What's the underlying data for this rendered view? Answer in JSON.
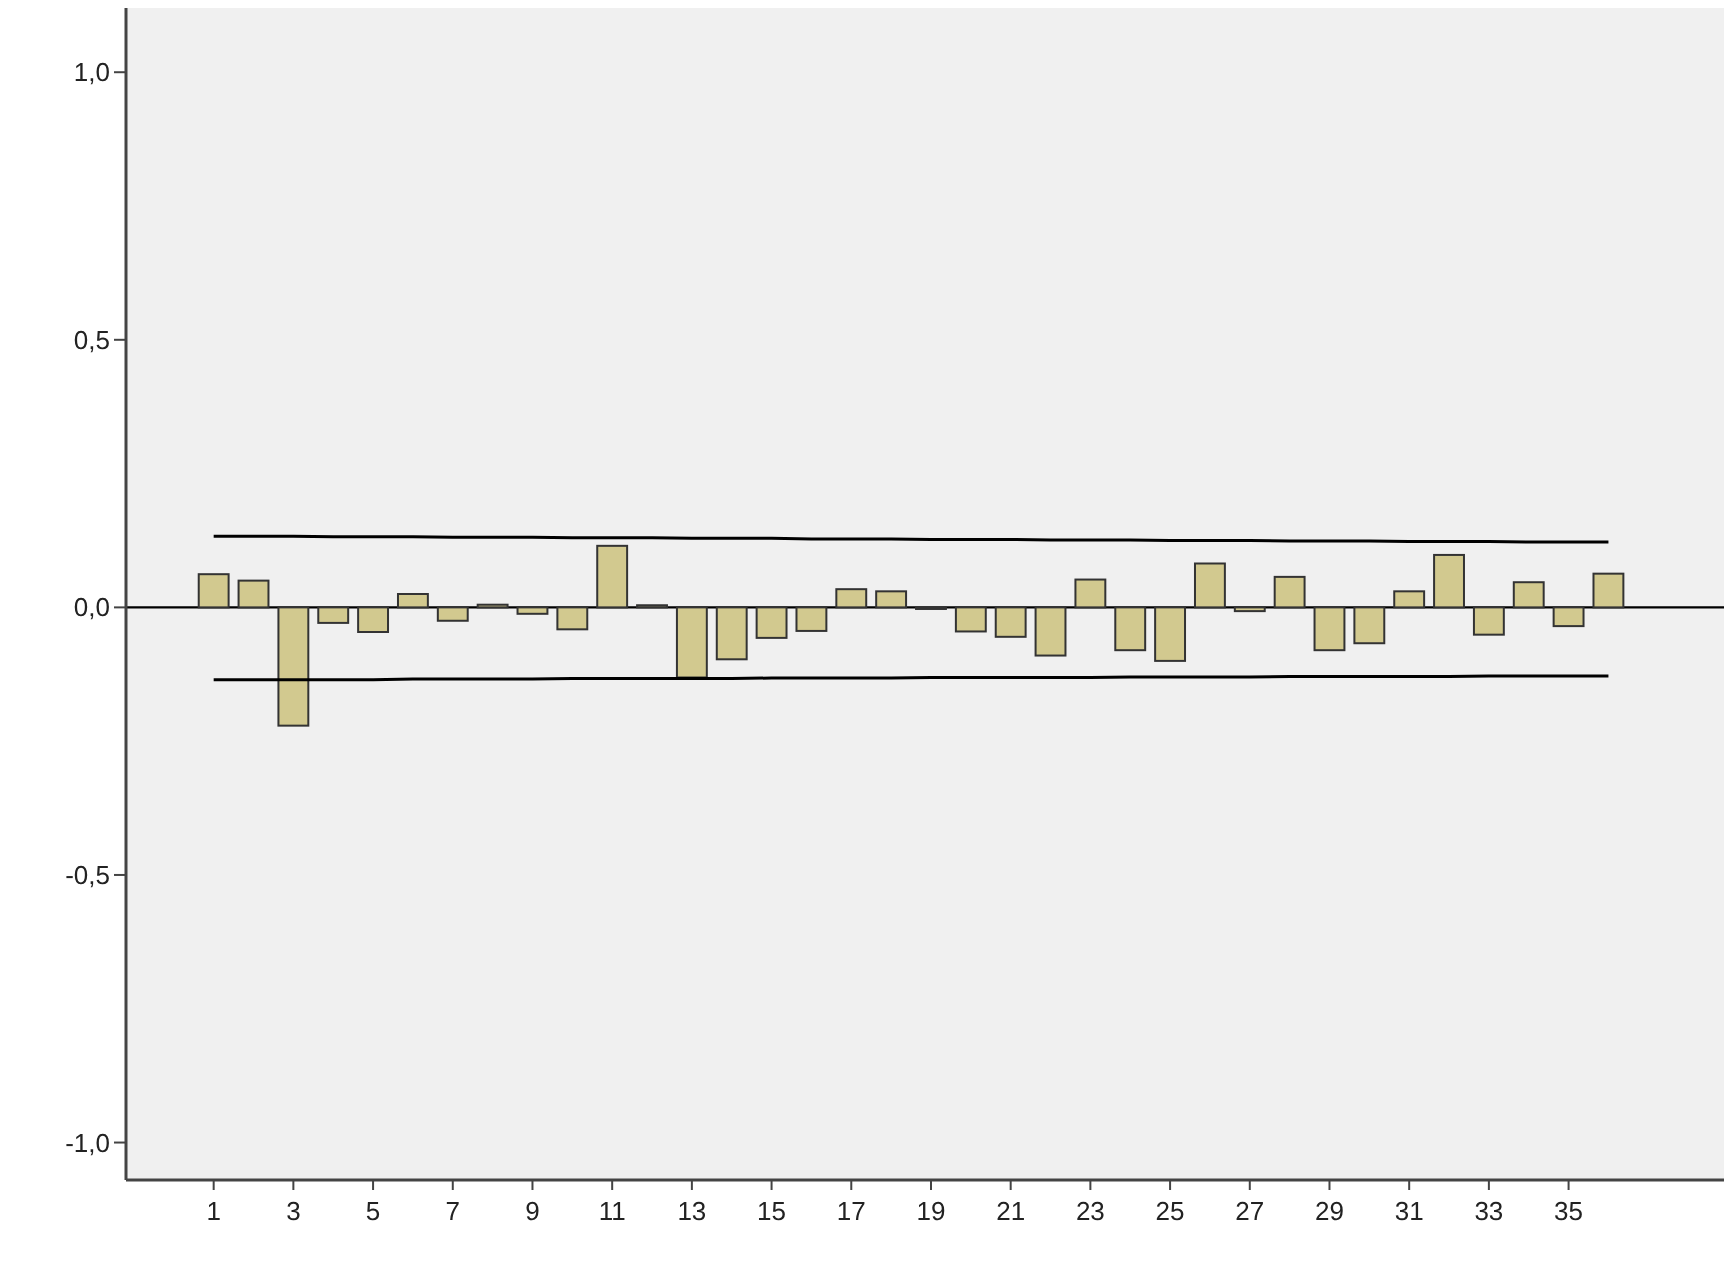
{
  "chart_data": {
    "type": "bar",
    "x": [
      1,
      2,
      3,
      4,
      5,
      6,
      7,
      8,
      9,
      10,
      11,
      12,
      13,
      14,
      15,
      16,
      17,
      18,
      19,
      20,
      21,
      22,
      23,
      24,
      25,
      26,
      27,
      28,
      29,
      30,
      31,
      32,
      33,
      34,
      35,
      36
    ],
    "values": [
      0.062,
      0.05,
      -0.221,
      -0.029,
      -0.046,
      0.025,
      -0.025,
      0.005,
      -0.012,
      -0.041,
      0.115,
      0.004,
      -0.131,
      -0.097,
      -0.057,
      -0.044,
      0.034,
      0.03,
      0,
      -0.045,
      -0.055,
      -0.09,
      0.052,
      -0.08,
      -0.1,
      0.082,
      -0.007,
      0.057,
      -0.08,
      -0.067,
      0.03,
      0.098,
      -0.051,
      0.047,
      -0.035,
      0.063
    ],
    "color": "#d2c98f",
    "series": [
      {
        "type": "line",
        "values": [
          0.133,
          0.133,
          0.133,
          0.132,
          0.132,
          0.132,
          0.131,
          0.131,
          0.131,
          0.13,
          0.13,
          0.13,
          0.129,
          0.129,
          0.129,
          0.128,
          0.128,
          0.128,
          0.127,
          0.127,
          0.127,
          0.126,
          0.126,
          0.126,
          0.125,
          0.125,
          0.125,
          0.124,
          0.124,
          0.124,
          0.123,
          0.123,
          0.123,
          0.122,
          0.122,
          0.122
        ],
        "color": "#000000"
      },
      {
        "type": "line",
        "values": [
          -0.135,
          -0.135,
          -0.135,
          -0.135,
          -0.135,
          -0.134,
          -0.134,
          -0.134,
          -0.134,
          -0.133,
          -0.133,
          -0.133,
          -0.133,
          -0.133,
          -0.132,
          -0.132,
          -0.132,
          -0.132,
          -0.131,
          -0.131,
          -0.131,
          -0.131,
          -0.131,
          -0.13,
          -0.13,
          -0.13,
          -0.13,
          -0.129,
          -0.129,
          -0.129,
          -0.129,
          -0.129,
          -0.128,
          -0.128,
          -0.128,
          -0.128
        ],
        "color": "#000000"
      }
    ],
    "xlim": [
      -1.2,
      38.9
    ],
    "xticks": [
      1,
      3,
      5,
      7,
      9,
      11,
      13,
      15,
      17,
      19,
      21,
      23,
      25,
      27,
      29,
      31,
      33,
      35
    ],
    "ylim": [
      -1.07,
      1.12
    ],
    "yticks": [
      {
        "value": -1,
        "label": "-1,0"
      },
      {
        "value": -0.5,
        "label": "-0,5"
      },
      {
        "value": 0,
        "label": "0,0"
      },
      {
        "value": 0.5,
        "label": "0,5"
      },
      {
        "value": 1,
        "label": "1,0"
      }
    ],
    "ref_lines": [
      {
        "axis": "y",
        "value": 0,
        "color": "#000000"
      }
    ],
    "grid": false
  }
}
